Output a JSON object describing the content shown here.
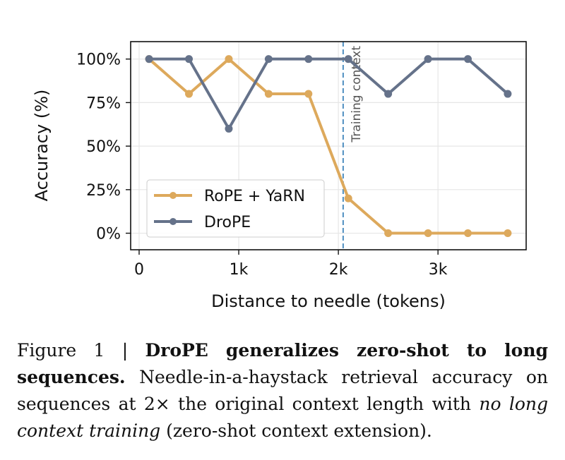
{
  "chart_data": {
    "type": "line",
    "title": "",
    "xlabel": "Distance to needle (tokens)",
    "ylabel": "Accuracy (%)",
    "xlim": [
      -85,
      3885
    ],
    "ylim": [
      -9.5,
      110
    ],
    "xticks": [
      {
        "value": 0,
        "label": "0"
      },
      {
        "value": 1000,
        "label": "1k"
      },
      {
        "value": 2000,
        "label": "2k"
      },
      {
        "value": 3000,
        "label": "3k"
      }
    ],
    "yticks": [
      {
        "value": 0,
        "label": "0%"
      },
      {
        "value": 25,
        "label": "25%"
      },
      {
        "value": 50,
        "label": "50%"
      },
      {
        "value": 75,
        "label": "75%"
      },
      {
        "value": 100,
        "label": "100%"
      }
    ],
    "grid": true,
    "legend_position": "lower-left",
    "x": [
      100,
      500,
      900,
      1300,
      1700,
      2100,
      2500,
      2900,
      3300,
      3700
    ],
    "series": [
      {
        "name": "RoPE + YaRN",
        "color": "#dda95c",
        "values": [
          100,
          80,
          100,
          80,
          80,
          20,
          0,
          0,
          0,
          0
        ]
      },
      {
        "name": "DroPE",
        "color": "#65728a",
        "values": [
          100,
          100,
          60,
          100,
          100,
          100,
          80,
          100,
          100,
          80
        ]
      }
    ],
    "annotations": [
      {
        "type": "vline",
        "x": 2048,
        "label": "Training context",
        "color": "#4f8fc0"
      }
    ]
  },
  "caption": {
    "prefix": "Figure 1 | ",
    "bold": "DroPE generalizes zero-shot to long sequences.",
    "text1": " Needle-in-a-haystack retrieval accuracy on sequences at 2× the original context length with ",
    "italic": "no long context training",
    "text2": " (zero-shot context extension)."
  }
}
